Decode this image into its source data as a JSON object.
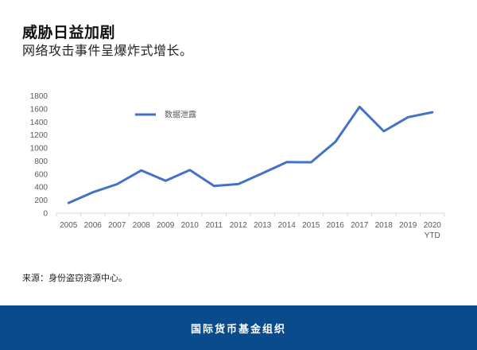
{
  "header": {
    "title": "威胁日益加剧",
    "subtitle": "网络攻击事件呈爆炸式增长。"
  },
  "source": "来源：身份盗窃资源中心。",
  "footer": {
    "org": "国际货币基金组织",
    "color": "#0a4b8c"
  },
  "chart_data": {
    "type": "line",
    "title": "",
    "xlabel": "",
    "ylabel": "",
    "categories": [
      "2005",
      "2006",
      "2007",
      "2008",
      "2009",
      "2010",
      "2011",
      "2012",
      "2013",
      "2014",
      "2015",
      "2016",
      "2017",
      "2018",
      "2019",
      "2020"
    ],
    "category_sublabels": {
      "2020": "YTD"
    },
    "series": [
      {
        "name": "数据泄露",
        "color": "#4472c4",
        "values": [
          157,
          321,
          446,
          656,
          498,
          662,
          419,
          447,
          614,
          783,
          781,
          1093,
          1632,
          1257,
          1473,
          1549
        ]
      }
    ],
    "ylim": [
      0,
      1800
    ],
    "yticks": [
      0,
      200,
      400,
      600,
      800,
      1000,
      1200,
      1400,
      1600,
      1800
    ],
    "grid": false,
    "legend_position": "top-left inside"
  }
}
